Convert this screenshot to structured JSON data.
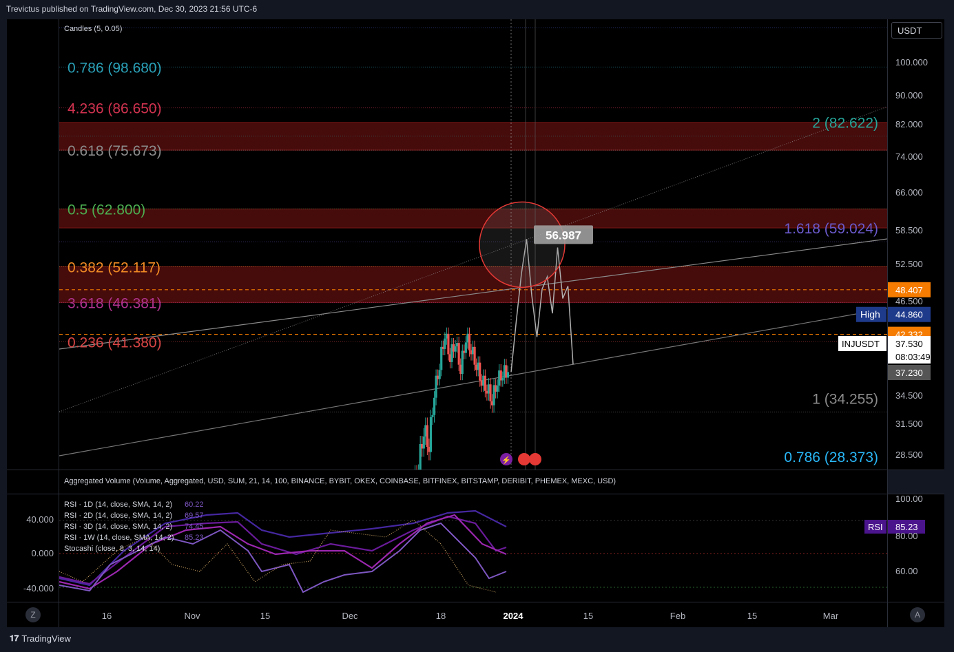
{
  "header": {
    "publisher": "Trevictus published on TradingView.com, Dec 30, 2023 21:56 UTC-6"
  },
  "footer": {
    "brand": "TradingView"
  },
  "corner": {
    "left": "Z",
    "right": "A"
  },
  "price_panel": {
    "indicator_label": "Candles (5, 0.05)",
    "currency_button": "USDT",
    "price_ticks": [
      "100.000",
      "90.000",
      "82.000",
      "74.000",
      "66.000",
      "58.500",
      "52.500",
      "46.500",
      "34.500",
      "31.500",
      "28.500"
    ],
    "badges": {
      "price_a": "48.407",
      "high_label": "High",
      "high_value": "44.860",
      "price_b": "42.332",
      "symbol": "INJUSDT",
      "last": "37.530",
      "countdown": "08:03:49",
      "prev": "37.230"
    },
    "callout": "56.987",
    "fib_left": [
      {
        "text": "0.786 (98.680)",
        "color": "#2aa1b8"
      },
      {
        "text": "4.236 (86.650)",
        "color": "#d0324f"
      },
      {
        "text": "0.618 (75.673)",
        "color": "#8b8b8b"
      },
      {
        "text": "0.5 (62.800)",
        "color": "#4caf50"
      },
      {
        "text": "0.382 (52.117)",
        "color": "#f08a24"
      },
      {
        "text": "3.618 (46.381)",
        "color": "#b0338e"
      },
      {
        "text": "0.236 (41.380)",
        "color": "#d84545"
      }
    ],
    "fib_right": [
      {
        "text": "2 (82.622)",
        "color": "#26a69a"
      },
      {
        "text": "1.618 (59.024)",
        "color": "#6a5acd"
      },
      {
        "text": "1 (34.255)",
        "color": "#8b8b8b"
      },
      {
        "text": "0.786 (28.373)",
        "color": "#29b6f6"
      }
    ]
  },
  "volume_label": "Aggregated Volume (Volume, Aggregated, USD, SUM, 21, 14, 100, BINANCE, BYBIT, OKEX, COINBASE, BITFINEX, BITSTAMP, DERIBIT, PHEMEX, MEXC, USD)",
  "rsi_panel": {
    "legend": [
      {
        "name": "RSI · 1D (14, close, SMA, 14, 2)",
        "value": "60.22"
      },
      {
        "name": "RSI · 2D (14, close, SMA, 14, 2)",
        "value": "69.57"
      },
      {
        "name": "RSI · 3D (14, close, SMA, 14, 2)",
        "value": "74.45"
      },
      {
        "name": "RSI · 1W (14, close, SMA, 14, 2)",
        "value": "85.23"
      },
      {
        "name": "Stocashi (close, 8, 3, 14, 14)",
        "value": ""
      }
    ],
    "left_ticks": [
      "40.000",
      "0.000",
      "-40.000"
    ],
    "right_ticks": [
      "100.00",
      "80.00",
      "60.00"
    ],
    "badge_label": "RSI",
    "badge_value": "85.23"
  },
  "time_axis": [
    "16",
    "Nov",
    "15",
    "Dec",
    "18",
    "2024",
    "15",
    "Feb",
    "15",
    "Mar"
  ],
  "chart_data": {
    "type": "candlestick",
    "symbol": "INJUSDT",
    "price_axis_ticks": [
      100.0,
      90.0,
      82.0,
      74.0,
      66.0,
      58.5,
      52.5,
      46.5,
      34.5,
      31.5,
      28.5
    ],
    "fib_levels_left": [
      98.68,
      86.65,
      75.673,
      62.8,
      52.117,
      46.381,
      41.38
    ],
    "fib_levels_right": [
      82.622,
      59.024,
      34.255,
      28.373
    ],
    "zones": [
      [
        75.673,
        82.622
      ],
      [
        59.024,
        62.8
      ],
      [
        46.381,
        52.117
      ]
    ],
    "dashed_levels": [
      48.407,
      42.332
    ],
    "last_price": 37.53,
    "callout_price": 56.987,
    "close_path": [
      [
        "Dec 10",
        25.0
      ],
      [
        "Dec 12",
        27.5
      ],
      [
        "Dec 14",
        31.0
      ],
      [
        "Dec 15",
        29.5
      ],
      [
        "Dec 16",
        35.0
      ],
      [
        "Dec 17",
        38.5
      ],
      [
        "Dec 18",
        42.5
      ],
      [
        "Dec 19",
        39.5
      ],
      [
        "Dec 20",
        41.5
      ],
      [
        "Dec 21",
        38.0
      ],
      [
        "Dec 22",
        42.0
      ],
      [
        "Dec 23",
        40.5
      ],
      [
        "Dec 24",
        38.5
      ],
      [
        "Dec 25",
        36.5
      ],
      [
        "Dec 26",
        35.5
      ],
      [
        "Dec 27",
        34.2
      ],
      [
        "Dec 28",
        36.5
      ],
      [
        "Dec 29",
        37.5
      ],
      [
        "Dec 30",
        37.53
      ]
    ],
    "projection_path": [
      [
        37.53,
        0
      ],
      [
        44.0,
        1
      ],
      [
        51.0,
        2
      ],
      [
        57.0,
        3
      ],
      [
        47.5,
        4
      ],
      [
        42.0,
        5
      ],
      [
        48.5,
        6
      ],
      [
        50.5,
        7
      ],
      [
        45.0,
        8
      ],
      [
        55.5,
        9
      ],
      [
        47.0,
        10
      ],
      [
        49.0,
        11
      ],
      [
        38.5,
        12
      ]
    ],
    "rsi_axis_ticks": [
      100,
      80,
      60
    ],
    "rsi_last": {
      "1D": 60.22,
      "2D": 69.57,
      "3D": 74.45,
      "1W": 85.23
    }
  }
}
